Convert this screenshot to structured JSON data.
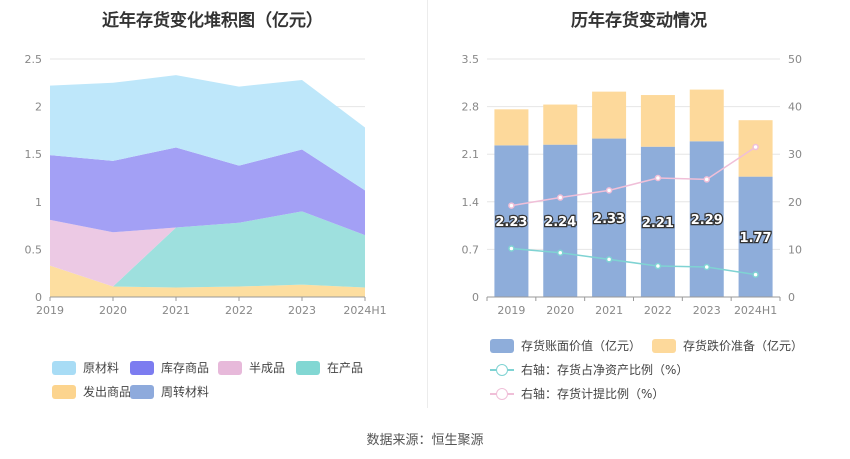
{
  "left_title": "近年存货变化堆积图（亿元）",
  "right_title": "历年存货变动情况",
  "source": "数据来源：恒生聚源",
  "chart_data": [
    {
      "type": "area",
      "title": "近年存货变化堆积图（亿元）",
      "categories": [
        "2019",
        "2020",
        "2021",
        "2022",
        "2023",
        "2024H1"
      ],
      "ylim": [
        0,
        2.5
      ],
      "yticks": [
        "0",
        "0.5",
        "1",
        "1.5",
        "2",
        "2.5"
      ],
      "stacked": true,
      "series": [
        {
          "name": "发出商品",
          "color": "#fddea0",
          "values": [
            0.33,
            0.11,
            0.1,
            0.11,
            0.13,
            0.1
          ]
        },
        {
          "name": "周转材料",
          "color": "#93aedc",
          "values": [
            0.0,
            0.0,
            0.0,
            0.0,
            0.0,
            0.0
          ]
        },
        {
          "name": "在产品",
          "color": "#9ee0de",
          "values": [
            0.0,
            0.0,
            0.63,
            0.67,
            0.77,
            0.55
          ]
        },
        {
          "name": "半成品",
          "color": "#ecc9e4",
          "values": [
            0.48,
            0.57,
            0.0,
            0.0,
            0.0,
            0.0
          ]
        },
        {
          "name": "库存商品",
          "color": "#a3a0f5",
          "values": [
            0.68,
            0.75,
            0.84,
            0.6,
            0.65,
            0.47
          ]
        },
        {
          "name": "原材料",
          "color": "#bee7fa",
          "values": [
            0.73,
            0.82,
            0.76,
            0.83,
            0.73,
            0.66
          ]
        }
      ],
      "legend": [
        {
          "name": "原材料",
          "color": "#a8dcf5"
        },
        {
          "name": "库存商品",
          "color": "#7c7cf0"
        },
        {
          "name": "半成品",
          "color": "#e7b9da"
        },
        {
          "name": "在产品",
          "color": "#82d7d3"
        },
        {
          "name": "发出商品",
          "color": "#fcd48e"
        },
        {
          "name": "周转材料",
          "color": "#8eaadc"
        }
      ],
      "legend_position": "bottom"
    },
    {
      "type": "bar",
      "title": "历年存货变动情况",
      "categories": [
        "2019",
        "2020",
        "2021",
        "2022",
        "2023",
        "2024H1"
      ],
      "ylim": [
        0,
        3.5
      ],
      "yticks": [
        "0",
        "0.7",
        "1.4",
        "2.1",
        "2.8",
        "3.5"
      ],
      "y2lim": [
        0,
        50
      ],
      "y2ticks": [
        "0",
        "10",
        "20",
        "30",
        "40",
        "50"
      ],
      "stacked": true,
      "series": [
        {
          "name": "存货账面价值（亿元）",
          "color": "#8eadda",
          "values": [
            2.23,
            2.24,
            2.33,
            2.21,
            2.29,
            1.77
          ],
          "labels": [
            "2.23",
            "2.24",
            "2.33",
            "2.21",
            "2.29",
            "1.77"
          ]
        },
        {
          "name": "存货跌价准备（亿元）",
          "color": "#fdd99b",
          "values": [
            0.53,
            0.59,
            0.69,
            0.76,
            0.76,
            0.83
          ]
        }
      ],
      "line_series": [
        {
          "name": "右轴：存货占净资产比例（%）",
          "color": "#7fd3d3",
          "axis": "right",
          "values": [
            10.2,
            9.3,
            7.9,
            6.5,
            6.3,
            4.7
          ]
        },
        {
          "name": "右轴：存货计提比例（%）",
          "color": "#f0bfd8",
          "axis": "right",
          "values": [
            19.2,
            20.9,
            22.4,
            25.0,
            24.7,
            31.5
          ]
        }
      ],
      "legend_position": "bottom"
    }
  ]
}
